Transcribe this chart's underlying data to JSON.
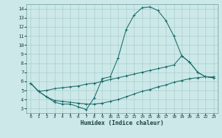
{
  "xlabel": "Humidex (Indice chaleur)",
  "bg_color": "#cce8e8",
  "grid_color": "#aacccc",
  "line_color": "#1a6b6b",
  "xlim": [
    -0.5,
    23.5
  ],
  "ylim": [
    2.5,
    14.5
  ],
  "xticks": [
    0,
    1,
    2,
    3,
    4,
    5,
    6,
    7,
    8,
    9,
    10,
    11,
    12,
    13,
    14,
    15,
    16,
    17,
    18,
    19,
    20,
    21,
    22,
    23
  ],
  "yticks": [
    3,
    4,
    5,
    6,
    7,
    8,
    9,
    10,
    11,
    12,
    13,
    14
  ],
  "line1_x": [
    0,
    1,
    2,
    3,
    4,
    5,
    6,
    7,
    8,
    9,
    10,
    11,
    12,
    13,
    14,
    15,
    16,
    17,
    18,
    19,
    20,
    21,
    22,
    23
  ],
  "line1_y": [
    5.8,
    4.9,
    4.3,
    3.7,
    3.5,
    3.5,
    3.2,
    2.9,
    4.2,
    6.3,
    6.5,
    8.6,
    11.7,
    13.3,
    14.1,
    14.2,
    13.8,
    12.7,
    11.0,
    8.8,
    8.1,
    7.0,
    6.5,
    6.4
  ],
  "line2_x": [
    0,
    1,
    2,
    3,
    4,
    5,
    6,
    7,
    8,
    9,
    10,
    11,
    12,
    13,
    14,
    15,
    16,
    17,
    18,
    19,
    20,
    21,
    22,
    23
  ],
  "line2_y": [
    5.8,
    4.9,
    5.0,
    5.2,
    5.3,
    5.4,
    5.5,
    5.7,
    5.8,
    6.0,
    6.2,
    6.4,
    6.6,
    6.8,
    7.0,
    7.2,
    7.4,
    7.6,
    7.8,
    8.8,
    8.1,
    7.0,
    6.5,
    6.4
  ],
  "line3_x": [
    0,
    1,
    2,
    3,
    4,
    5,
    6,
    7,
    8,
    9,
    10,
    11,
    12,
    13,
    14,
    15,
    16,
    17,
    18,
    19,
    20,
    21,
    22,
    23
  ],
  "line3_y": [
    5.8,
    4.9,
    4.3,
    3.9,
    3.8,
    3.7,
    3.6,
    3.5,
    3.5,
    3.6,
    3.8,
    4.0,
    4.3,
    4.6,
    4.9,
    5.1,
    5.4,
    5.6,
    5.9,
    6.1,
    6.3,
    6.4,
    6.5,
    6.5
  ]
}
